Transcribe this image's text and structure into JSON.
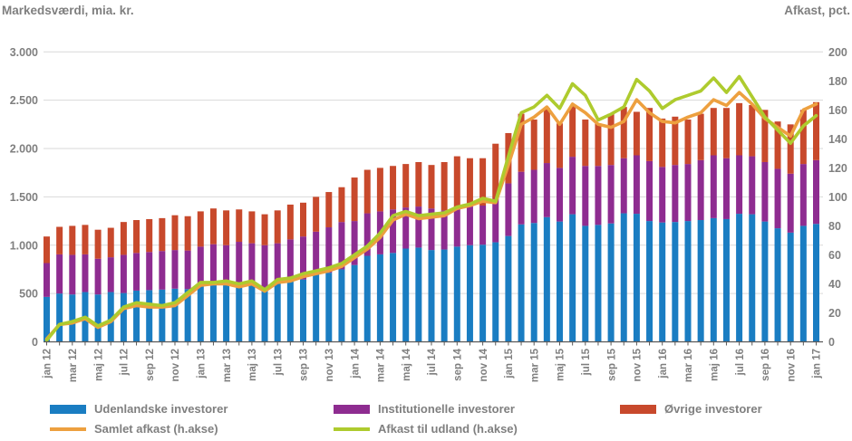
{
  "chart_data": {
    "type": "bar",
    "subtype": "stacked-bars-with-lines-combo",
    "title": "",
    "left_axis": {
      "title": "Markedsværdi, mia. kr.",
      "range": [
        0,
        3000
      ],
      "tick_step": 500,
      "tick_labels": [
        "3.000",
        "2.500",
        "2.000",
        "1.500",
        "1.000",
        "500",
        "0"
      ]
    },
    "right_axis": {
      "title": "Afkast, pct.",
      "range": [
        0,
        200
      ],
      "tick_step": 20,
      "tick_labels": [
        "200",
        "180",
        "160",
        "140",
        "120",
        "100",
        "80",
        "60",
        "40",
        "20",
        "0"
      ]
    },
    "grid": true,
    "legend_position": "bottom",
    "x_tick_label_frequency": "every second month, rotated 90°",
    "categories": [
      "jan 12",
      "feb 12",
      "mar 12",
      "apr 12",
      "maj 12",
      "jun 12",
      "jul 12",
      "aug 12",
      "sep 12",
      "okt 12",
      "nov 12",
      "dec 12",
      "jan 13",
      "feb 13",
      "mar 13",
      "apr 13",
      "maj 13",
      "jun 13",
      "jul 13",
      "aug 13",
      "sep 13",
      "okt 13",
      "nov 13",
      "dec 13",
      "jan 14",
      "feb 14",
      "mar 14",
      "apr 14",
      "maj 14",
      "jun 14",
      "jul 14",
      "aug 14",
      "sep 14",
      "okt 14",
      "nov 14",
      "dec 14",
      "jan 15",
      "feb 15",
      "mar 15",
      "apr 15",
      "maj 15",
      "jun 15",
      "jul 15",
      "aug 15",
      "sep 15",
      "okt 15",
      "nov 15",
      "dec 15",
      "jan 16",
      "feb 16",
      "mar 16",
      "apr 16",
      "maj 16",
      "jun 16",
      "jul 16",
      "aug 16",
      "sep 16",
      "okt 16",
      "nov 16",
      "dec 16",
      "jan 17"
    ],
    "series": [
      {
        "name": "Udenlandske investorer",
        "type": "bar",
        "axis": "left",
        "color": "#1a7dc2",
        "values": [
          465,
          500,
          490,
          515,
          490,
          515,
          505,
          530,
          535,
          540,
          550,
          545,
          580,
          600,
          595,
          600,
          590,
          535,
          625,
          640,
          645,
          715,
          715,
          750,
          795,
          890,
          905,
          920,
          965,
          975,
          950,
          955,
          985,
          1000,
          1005,
          1030,
          1095,
          1215,
          1230,
          1290,
          1245,
          1320,
          1200,
          1210,
          1225,
          1330,
          1325,
          1250,
          1235,
          1240,
          1250,
          1260,
          1280,
          1270,
          1325,
          1320,
          1245,
          1175,
          1130,
          1200,
          1220
        ]
      },
      {
        "name": "Institutionelle investorer",
        "type": "bar",
        "axis": "left",
        "color": "#8e2c90",
        "values": [
          350,
          405,
          410,
          390,
          370,
          360,
          395,
          390,
          395,
          400,
          400,
          400,
          405,
          410,
          405,
          435,
          430,
          465,
          395,
          420,
          445,
          425,
          470,
          490,
          455,
          440,
          445,
          450,
          425,
          425,
          430,
          405,
          405,
          400,
          405,
          450,
          545,
          545,
          550,
          560,
          555,
          595,
          620,
          610,
          605,
          570,
          605,
          620,
          575,
          590,
          590,
          620,
          650,
          630,
          605,
          600,
          615,
          615,
          610,
          640,
          660
        ]
      },
      {
        "name": "Øvrige investorer",
        "type": "bar",
        "axis": "left",
        "color": "#c8492c",
        "values": [
          275,
          285,
          300,
          305,
          300,
          305,
          340,
          340,
          340,
          340,
          360,
          355,
          365,
          370,
          360,
          335,
          330,
          320,
          340,
          360,
          350,
          360,
          365,
          360,
          450,
          450,
          450,
          450,
          450,
          460,
          450,
          500,
          530,
          500,
          490,
          570,
          520,
          600,
          520,
          570,
          460,
          525,
          480,
          440,
          530,
          530,
          450,
          550,
          500,
          500,
          460,
          480,
          490,
          520,
          540,
          530,
          540,
          490,
          510,
          560,
          600
        ]
      },
      {
        "name": "Samlet afkast (h.akse)",
        "type": "line",
        "axis": "right",
        "color": "#eda03f",
        "values": [
          2,
          12,
          13,
          16,
          10,
          14,
          23,
          25,
          24,
          24,
          25,
          32,
          39,
          40,
          40,
          38,
          40,
          35,
          41,
          42,
          45,
          47,
          49,
          52,
          58,
          64,
          72,
          84,
          88,
          85,
          86,
          87,
          92,
          94,
          97,
          96,
          122,
          150,
          155,
          162,
          150,
          164,
          158,
          150,
          148,
          152,
          167,
          158,
          152,
          151,
          155,
          158,
          167,
          163,
          172,
          164,
          154,
          148,
          142,
          160,
          164
        ]
      },
      {
        "name": "Afkast til udland (h.akse)",
        "type": "line",
        "axis": "right",
        "color": "#aecb2e",
        "values": [
          1,
          12,
          14,
          17,
          11,
          15,
          24,
          27,
          26,
          25,
          27,
          34,
          41,
          41,
          42,
          40,
          42,
          36,
          43,
          44,
          47,
          49,
          51,
          54,
          60,
          66,
          75,
          87,
          90,
          87,
          88,
          89,
          93,
          95,
          99,
          97,
          128,
          158,
          162,
          170,
          161,
          178,
          170,
          153,
          157,
          162,
          181,
          173,
          161,
          167,
          170,
          173,
          182,
          172,
          183,
          169,
          155,
          146,
          137,
          149,
          156
        ]
      }
    ],
    "colors": {
      "axis_text": "#7f7f7f",
      "gridline": "#d9d9d9",
      "axis_line": "#595959",
      "background": "#ffffff"
    }
  }
}
